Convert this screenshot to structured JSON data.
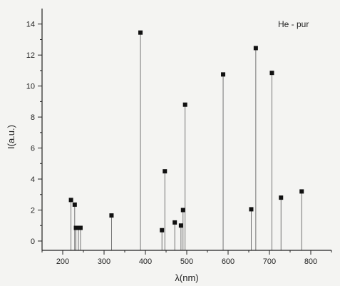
{
  "chart_data": {
    "type": "scatter",
    "style": "stem-with-square-markers",
    "annotation": "He - pur",
    "xlabel": "λ(nm)",
    "ylabel": "I(a.u.)",
    "xlim": [
      150,
      850
    ],
    "ylim": [
      -0.6,
      15
    ],
    "xticks": [
      200,
      300,
      400,
      500,
      600,
      700,
      800
    ],
    "yticks": [
      0,
      2,
      4,
      6,
      8,
      10,
      12,
      14
    ],
    "grid": false,
    "stem_baseline": -0.6,
    "points": [
      {
        "x": 220,
        "y": 2.65
      },
      {
        "x": 229,
        "y": 2.35
      },
      {
        "x": 232,
        "y": 0.85
      },
      {
        "x": 238,
        "y": 0.85
      },
      {
        "x": 243,
        "y": 0.85
      },
      {
        "x": 318,
        "y": 1.65
      },
      {
        "x": 388,
        "y": 13.45
      },
      {
        "x": 440,
        "y": 0.7
      },
      {
        "x": 447,
        "y": 4.5
      },
      {
        "x": 471,
        "y": 1.2
      },
      {
        "x": 486,
        "y": 1.0
      },
      {
        "x": 491,
        "y": 2.0
      },
      {
        "x": 496,
        "y": 8.8
      },
      {
        "x": 588,
        "y": 10.75
      },
      {
        "x": 656,
        "y": 2.05
      },
      {
        "x": 667,
        "y": 12.45
      },
      {
        "x": 706,
        "y": 10.85
      },
      {
        "x": 728,
        "y": 2.8
      },
      {
        "x": 778,
        "y": 3.2
      }
    ]
  }
}
